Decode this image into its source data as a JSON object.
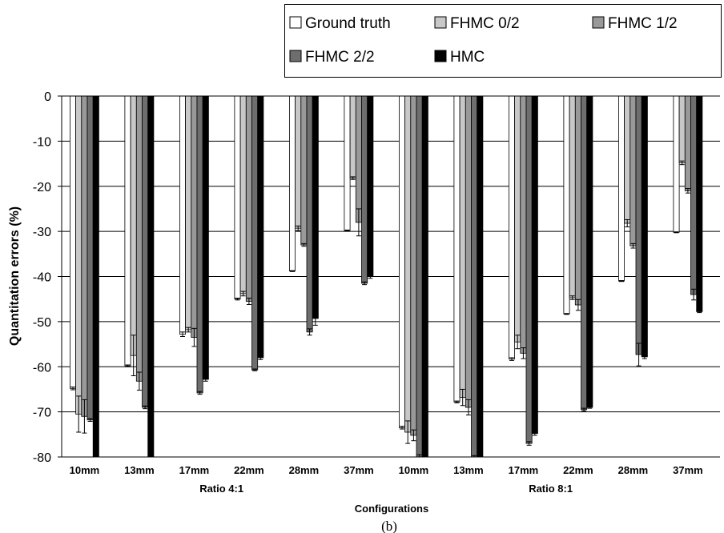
{
  "chart_data": {
    "type": "bar",
    "caption": "(b)",
    "xlabel": "Configurations",
    "ylabel": "Quantitation errors (%)",
    "ylim": [
      -80,
      0
    ],
    "yticks": [
      0,
      -10,
      -20,
      -30,
      -40,
      -50,
      -60,
      -70,
      -80
    ],
    "ytick_labels": [
      "0",
      "-10",
      "-20",
      "-30",
      "-40",
      "-50",
      "-60",
      "-70",
      "-80"
    ],
    "grid": true,
    "legend_position": "top-right",
    "categories": [
      "10mm",
      "13mm",
      "17mm",
      "22mm",
      "28mm",
      "37mm",
      "10mm",
      "13mm",
      "17mm",
      "22mm",
      "28mm",
      "37mm"
    ],
    "groups": [
      {
        "label": "Ratio 4:1",
        "categories": [
          "10mm",
          "13mm",
          "17mm",
          "22mm",
          "28mm",
          "37mm"
        ]
      },
      {
        "label": "Ratio 8:1",
        "categories": [
          "10mm",
          "13mm",
          "17mm",
          "22mm",
          "28mm",
          "37mm"
        ]
      }
    ],
    "series": [
      {
        "name": "Ground truth",
        "color": "#ffffff",
        "values": [
          -64.8,
          -59.8,
          -52.8,
          -45.0,
          -38.8,
          -29.8,
          -73.5,
          -67.8,
          -58.3,
          -48.3,
          -41.0,
          -30.2
        ],
        "errors": [
          0.3,
          0.2,
          0.5,
          0.2,
          0.1,
          0.1,
          0.3,
          0.2,
          0.3,
          0.1,
          0.1,
          0.1
        ]
      },
      {
        "name": "FHMC 0/2",
        "color": "#c8c8c8",
        "values": [
          -70.5,
          -57.5,
          -51.8,
          -43.8,
          -29.3,
          -18.2,
          -74.5,
          -66.8,
          -54.5,
          -44.7,
          -28.2,
          -14.8
        ],
        "errors": [
          4.0,
          4.5,
          0.5,
          0.5,
          0.5,
          0.3,
          2.5,
          1.8,
          1.5,
          0.4,
          0.8,
          0.4
        ]
      },
      {
        "name": "FHMC 1/2",
        "color": "#999999",
        "values": [
          -71.0,
          -63.2,
          -53.5,
          -45.5,
          -33.0,
          -28.0,
          -75.2,
          -69.0,
          -57.0,
          -46.3,
          -33.2,
          -21.0
        ],
        "errors": [
          3.7,
          2.0,
          2.0,
          0.7,
          0.3,
          3.0,
          1.2,
          1.7,
          1.2,
          1.2,
          0.5,
          0.5
        ]
      },
      {
        "name": "FHMC 2/2",
        "color": "#6e6e6e",
        "values": [
          -71.8,
          -69.0,
          -65.8,
          -60.7,
          -52.3,
          -41.5,
          -80.0,
          -80.0,
          -77.0,
          -69.5,
          -57.3,
          -44.0
        ],
        "errors": [
          0.3,
          0.3,
          0.3,
          0.2,
          0.7,
          0.3,
          0.5,
          0.3,
          0.4,
          0.3,
          2.5,
          1.2
        ]
      },
      {
        "name": "HMC",
        "color": "#000000",
        "values": [
          -80.0,
          -80.0,
          -62.8,
          -58.0,
          -49.3,
          -40.0,
          -80.0,
          -80.0,
          -74.8,
          -69.0,
          -57.8,
          -47.8
        ],
        "errors": [
          0.0,
          0.0,
          0.4,
          0.4,
          1.5,
          0.4,
          0.0,
          0.0,
          0.4,
          0.2,
          0.4,
          0.2
        ]
      }
    ]
  }
}
